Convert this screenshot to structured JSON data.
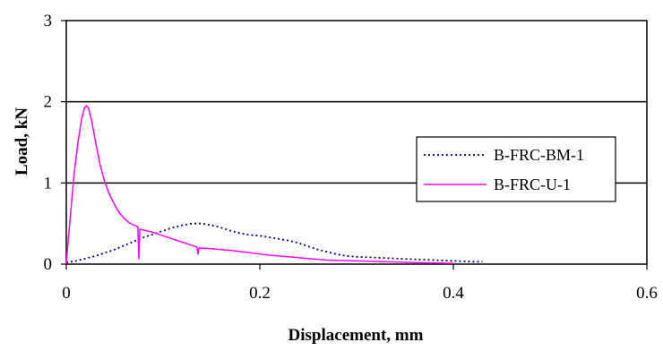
{
  "chart_data": {
    "type": "line",
    "title": "",
    "xlabel": "Displacement, mm",
    "ylabel": "Load, kN",
    "xlim": [
      0,
      0.6
    ],
    "ylim": [
      0,
      3
    ],
    "x_ticks": [
      "0",
      "0.2",
      "0.4",
      "0.6"
    ],
    "y_ticks": [
      "0",
      "1",
      "2",
      "3"
    ],
    "grid": "horizontal",
    "legend_position": "right",
    "series": [
      {
        "name": "B-FRC-BM-1",
        "color": "#000080",
        "style": "dotted",
        "points": [
          [
            0,
            0.02
          ],
          [
            0.01,
            0.04
          ],
          [
            0.02,
            0.07
          ],
          [
            0.03,
            0.1
          ],
          [
            0.04,
            0.14
          ],
          [
            0.05,
            0.18
          ],
          [
            0.06,
            0.23
          ],
          [
            0.07,
            0.28
          ],
          [
            0.08,
            0.33
          ],
          [
            0.09,
            0.37
          ],
          [
            0.1,
            0.41
          ],
          [
            0.11,
            0.45
          ],
          [
            0.12,
            0.48
          ],
          [
            0.13,
            0.5
          ],
          [
            0.14,
            0.5
          ],
          [
            0.15,
            0.48
          ],
          [
            0.16,
            0.45
          ],
          [
            0.17,
            0.41
          ],
          [
            0.18,
            0.38
          ],
          [
            0.19,
            0.36
          ],
          [
            0.2,
            0.35
          ],
          [
            0.21,
            0.33
          ],
          [
            0.22,
            0.31
          ],
          [
            0.23,
            0.29
          ],
          [
            0.24,
            0.26
          ],
          [
            0.25,
            0.22
          ],
          [
            0.26,
            0.18
          ],
          [
            0.27,
            0.15
          ],
          [
            0.28,
            0.12
          ],
          [
            0.29,
            0.1
          ],
          [
            0.3,
            0.09
          ],
          [
            0.32,
            0.08
          ],
          [
            0.34,
            0.07
          ],
          [
            0.36,
            0.06
          ],
          [
            0.38,
            0.05
          ],
          [
            0.4,
            0.04
          ],
          [
            0.42,
            0.03
          ],
          [
            0.43,
            0.03
          ]
        ]
      },
      {
        "name": "B-FRC-U-1",
        "color": "#ff00ff",
        "style": "solid",
        "points": [
          [
            0,
            0
          ],
          [
            0.002,
            0.3
          ],
          [
            0.005,
            0.7
          ],
          [
            0.008,
            1.1
          ],
          [
            0.012,
            1.5
          ],
          [
            0.016,
            1.8
          ],
          [
            0.019,
            1.93
          ],
          [
            0.021,
            1.95
          ],
          [
            0.023,
            1.92
          ],
          [
            0.026,
            1.78
          ],
          [
            0.03,
            1.52
          ],
          [
            0.035,
            1.22
          ],
          [
            0.04,
            1.0
          ],
          [
            0.045,
            0.85
          ],
          [
            0.05,
            0.73
          ],
          [
            0.055,
            0.63
          ],
          [
            0.06,
            0.56
          ],
          [
            0.065,
            0.51
          ],
          [
            0.07,
            0.48
          ],
          [
            0.074,
            0.46
          ],
          [
            0.075,
            0.06
          ],
          [
            0.076,
            0.43
          ],
          [
            0.08,
            0.42
          ],
          [
            0.09,
            0.39
          ],
          [
            0.1,
            0.35
          ],
          [
            0.11,
            0.31
          ],
          [
            0.12,
            0.27
          ],
          [
            0.13,
            0.23
          ],
          [
            0.135,
            0.21
          ],
          [
            0.136,
            0.12
          ],
          [
            0.137,
            0.2
          ],
          [
            0.15,
            0.19
          ],
          [
            0.17,
            0.17
          ],
          [
            0.19,
            0.14
          ],
          [
            0.21,
            0.11
          ],
          [
            0.23,
            0.09
          ],
          [
            0.25,
            0.07
          ],
          [
            0.27,
            0.05
          ],
          [
            0.3,
            0.04
          ],
          [
            0.33,
            0.03
          ],
          [
            0.36,
            0.02
          ],
          [
            0.4,
            0.01
          ]
        ]
      }
    ]
  }
}
